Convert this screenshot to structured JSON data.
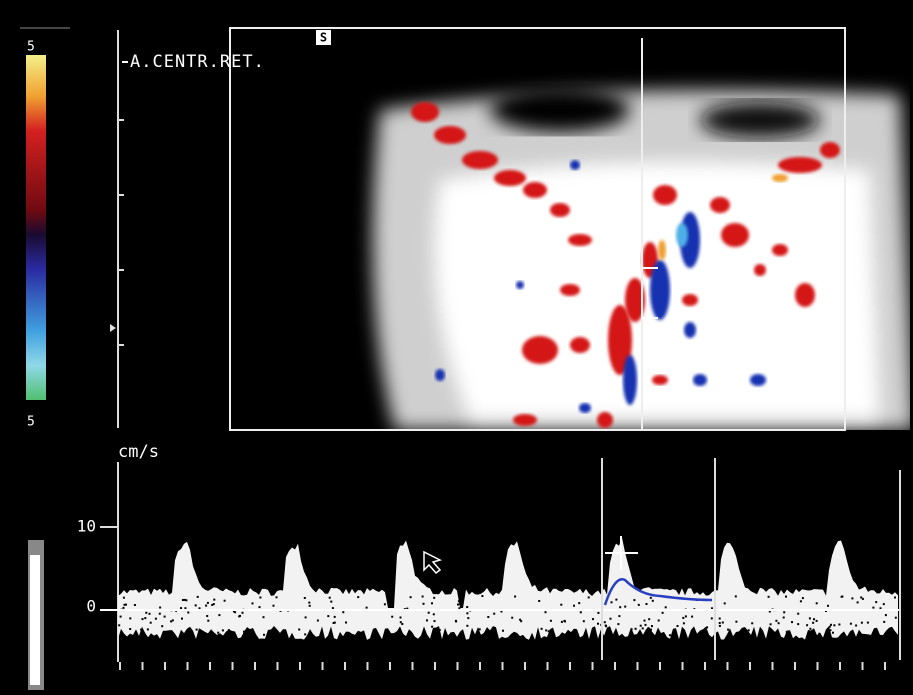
{
  "color_scale": {
    "top_label": "5",
    "bottom_label": "5"
  },
  "image": {
    "label": "A.CENTR.RET.",
    "mode_badge": "S"
  },
  "spectrum": {
    "unit": "cm/s",
    "scale_labels": [
      "10",
      "0"
    ]
  }
}
